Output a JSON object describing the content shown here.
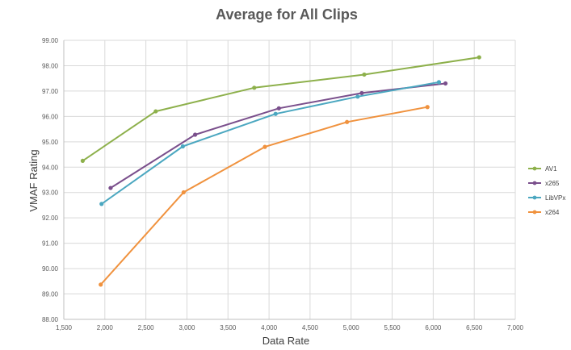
{
  "chart_data": {
    "type": "line",
    "title": "Average for All Clips",
    "xlabel": "Data Rate",
    "ylabel": "VMAF Rating",
    "xlim": [
      1500,
      7000
    ],
    "ylim": [
      88,
      99
    ],
    "xticks": [
      "1,500",
      "2,000",
      "2,500",
      "3,000",
      "3,500",
      "4,000",
      "4,500",
      "5,000",
      "5,500",
      "6,000",
      "6,500",
      "7,000"
    ],
    "yticks": [
      "88.00",
      "89.00",
      "90.00",
      "91.00",
      "92.00",
      "93.00",
      "94.00",
      "95.00",
      "96.00",
      "97.00",
      "98.00",
      "99.00"
    ],
    "grid": "vertical-and-horizontal",
    "legend_position": "right",
    "series": [
      {
        "name": "AV1",
        "color": "#8db04b",
        "points": [
          [
            1730,
            94.25
          ],
          [
            2620,
            96.2
          ],
          [
            3820,
            97.13
          ],
          [
            5160,
            97.65
          ],
          [
            6560,
            98.33
          ]
        ]
      },
      {
        "name": "x265",
        "color": "#7a4f8c",
        "points": [
          [
            2070,
            93.18
          ],
          [
            3100,
            95.28
          ],
          [
            4120,
            96.32
          ],
          [
            5130,
            96.92
          ],
          [
            6150,
            97.3
          ]
        ]
      },
      {
        "name": "LibVPx",
        "color": "#4ba7c0",
        "points": [
          [
            1960,
            92.55
          ],
          [
            2950,
            94.82
          ],
          [
            4080,
            96.1
          ],
          [
            5080,
            96.78
          ],
          [
            6070,
            97.35
          ]
        ]
      },
      {
        "name": "x264",
        "color": "#f0923e",
        "points": [
          [
            1950,
            89.37
          ],
          [
            2960,
            93.01
          ],
          [
            3950,
            94.8
          ],
          [
            4950,
            95.78
          ],
          [
            5930,
            96.37
          ]
        ]
      }
    ]
  }
}
